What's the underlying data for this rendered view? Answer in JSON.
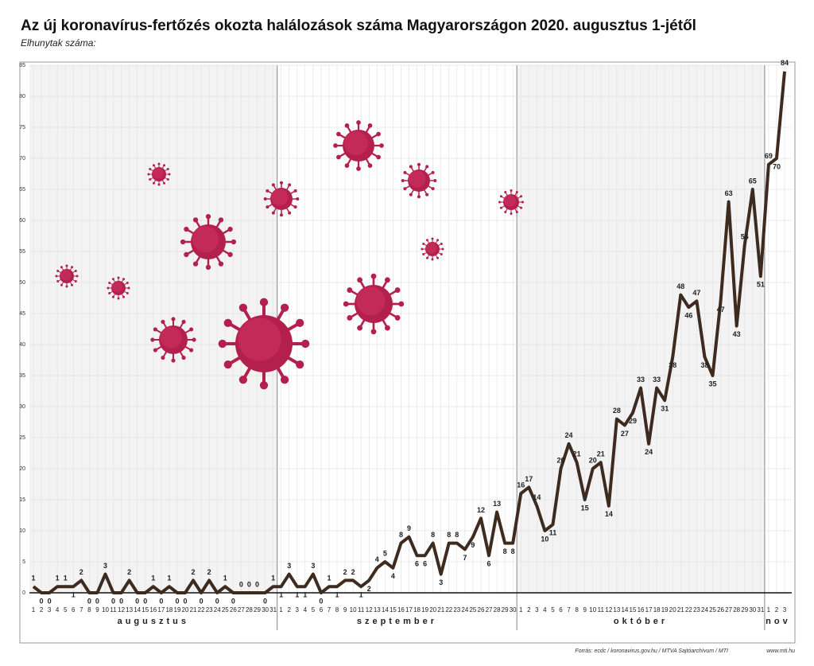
{
  "chart_data": {
    "type": "line",
    "title": "Az új koronavírus-fertőzés okozta halálozások száma Magyarországon 2020. augusztus 1-jétől",
    "y_label": "Elhunytak száma:",
    "source": "Forrás: ecdc / koronavirus.gov.hu / MTVA Sajtóarchívum / MTI",
    "website": "www.mti.hu",
    "categories": [
      "1",
      "2",
      "3",
      "4",
      "5",
      "6",
      "7",
      "8",
      "9",
      "10",
      "11",
      "12",
      "13",
      "14",
      "15",
      "16",
      "17",
      "18",
      "19",
      "20",
      "21",
      "22",
      "23",
      "24",
      "25",
      "26",
      "27",
      "28",
      "29",
      "30",
      "31",
      "1",
      "2",
      "3",
      "4",
      "5",
      "6",
      "7",
      "8",
      "9",
      "10",
      "11",
      "12",
      "13",
      "14",
      "15",
      "16",
      "17",
      "18",
      "19",
      "20",
      "21",
      "22",
      "23",
      "24",
      "25",
      "26",
      "27",
      "28",
      "29",
      "30",
      "1",
      "2",
      "3",
      "4",
      "5",
      "6",
      "7",
      "8",
      "9",
      "10",
      "11",
      "12",
      "13",
      "14",
      "15",
      "16",
      "17",
      "18",
      "19",
      "20",
      "21",
      "22",
      "23",
      "24",
      "25",
      "26",
      "27",
      "28",
      "29",
      "30",
      "31",
      "1",
      "2",
      "3"
    ],
    "months": [
      "augusztus",
      "szeptember",
      "október",
      "nov"
    ],
    "values": [
      1,
      0,
      0,
      1,
      1,
      1,
      2,
      0,
      0,
      3,
      0,
      0,
      2,
      0,
      0,
      1,
      0,
      1,
      0,
      0,
      2,
      0,
      2,
      0,
      1,
      0,
      0,
      0,
      0,
      0,
      1,
      1,
      3,
      1,
      1,
      3,
      0,
      1,
      1,
      2,
      2,
      1,
      2,
      4,
      5,
      4,
      8,
      9,
      6,
      6,
      8,
      3,
      8,
      8,
      7,
      9,
      12,
      6,
      13,
      8,
      8,
      16,
      17,
      14,
      10,
      11,
      20,
      24,
      21,
      15,
      20,
      21,
      14,
      28,
      27,
      29,
      33,
      24,
      33,
      31,
      38,
      48,
      46,
      47,
      38,
      35,
      47,
      63,
      43,
      56,
      65,
      51,
      69,
      70,
      84
    ],
    "color": "#3d2b1f",
    "ylim": [
      0,
      85
    ],
    "yticks": [
      0,
      5,
      10,
      15,
      20,
      25,
      30,
      35,
      40,
      45,
      50,
      55,
      60,
      65,
      70,
      75,
      80,
      85
    ],
    "grid": true
  }
}
